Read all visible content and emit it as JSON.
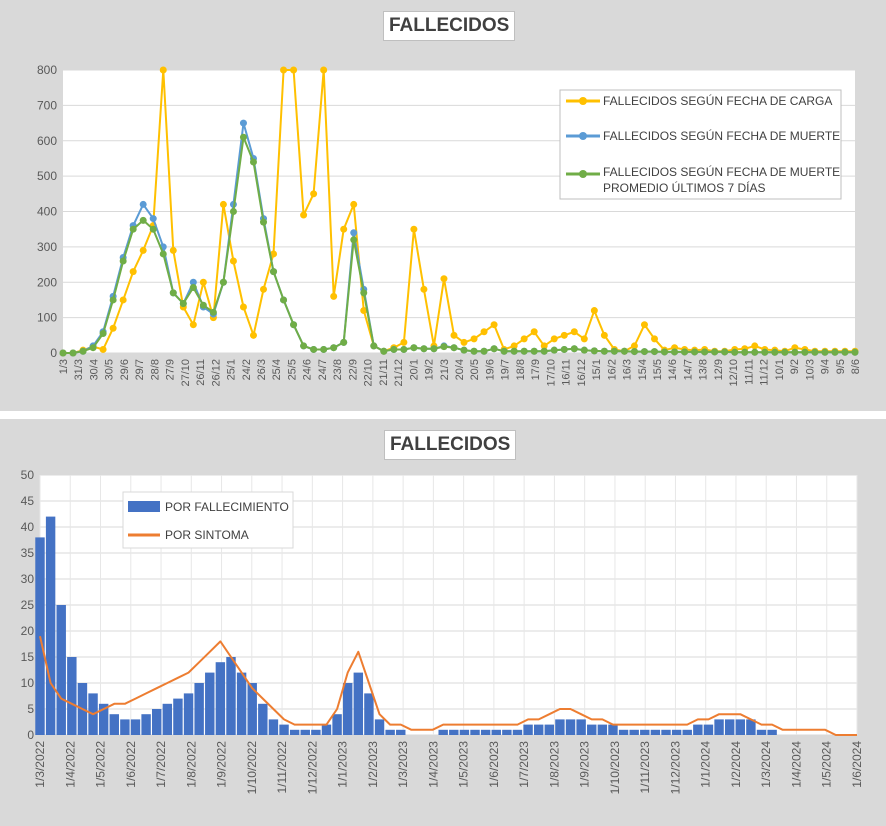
{
  "chart_data": [
    {
      "type": "line",
      "title": "FALLECIDOS",
      "ylim": [
        0,
        800
      ],
      "y_ticks": [
        "0",
        "100",
        "200",
        "300",
        "400",
        "500",
        "600",
        "700",
        "800"
      ],
      "x_tick_labels": [
        "1/3",
        "31/3",
        "30/4",
        "30/5",
        "29/6",
        "29/7",
        "28/8",
        "27/9",
        "27/10",
        "26/11",
        "26/12",
        "25/1",
        "24/2",
        "26/3",
        "25/4",
        "25/5",
        "24/6",
        "24/7",
        "23/8",
        "22/9",
        "22/10",
        "21/11",
        "21/12",
        "20/1",
        "19/2",
        "21/3",
        "20/4",
        "20/5",
        "19/6",
        "19/7",
        "18/8",
        "17/9",
        "17/10",
        "16/11",
        "16/12",
        "15/1",
        "16/2",
        "16/3",
        "15/4",
        "15/5",
        "14/6",
        "14/7",
        "13/8",
        "12/9",
        "12/10",
        "11/11",
        "11/12",
        "10/1",
        "9/2",
        "10/3",
        "9/4",
        "9/5",
        "8/6"
      ],
      "grid": true,
      "legend_position": "top-right",
      "series": [
        {
          "name": "FALLECIDOS SEGÚN FECHA DE CARGA",
          "color": "#ffc000",
          "values": [
            0,
            0,
            8,
            18,
            10,
            70,
            150,
            230,
            290,
            360,
            820,
            290,
            130,
            80,
            200,
            100,
            420,
            260,
            130,
            50,
            180,
            280,
            860,
            880,
            390,
            450,
            810,
            160,
            350,
            420,
            120,
            20,
            5,
            15,
            30,
            350,
            180,
            20,
            210,
            50,
            30,
            40,
            60,
            80,
            10,
            20,
            40,
            60,
            20,
            40,
            50,
            60,
            40,
            120,
            50,
            10,
            5,
            20,
            80,
            40,
            8,
            15,
            10,
            8,
            10,
            5,
            5,
            10,
            12,
            20,
            10,
            8,
            5,
            15,
            10,
            5,
            5,
            5,
            5,
            5
          ]
        },
        {
          "name": "FALLECIDOS SEGÚN FECHA DE MUERTE",
          "color": "#5b9bd5",
          "values": [
            0,
            0,
            5,
            20,
            60,
            160,
            270,
            360,
            420,
            380,
            300,
            170,
            140,
            200,
            130,
            110,
            200,
            420,
            650,
            550,
            380,
            230,
            150,
            80,
            20,
            10,
            10,
            15,
            30,
            340,
            180,
            20,
            5,
            10,
            10,
            15,
            12,
            12,
            20,
            15,
            8,
            5,
            5,
            12,
            5,
            5,
            5,
            5,
            5,
            8,
            10,
            12,
            8,
            6,
            5,
            5,
            5,
            4,
            4,
            4,
            3,
            3,
            3,
            3,
            3,
            3,
            3,
            2,
            2,
            2,
            2,
            2,
            2,
            2,
            2,
            2,
            2,
            2,
            2,
            2
          ]
        },
        {
          "name": "FALLECIDOS SEGÚN FECHA DE MUERTE PROMEDIO ÚLTIMOS 7 DÍAS",
          "color": "#70ad47",
          "values": [
            0,
            0,
            5,
            15,
            55,
            150,
            260,
            350,
            375,
            350,
            280,
            170,
            140,
            185,
            135,
            115,
            200,
            400,
            610,
            540,
            370,
            230,
            150,
            80,
            20,
            10,
            10,
            15,
            30,
            320,
            170,
            20,
            5,
            10,
            10,
            15,
            12,
            12,
            18,
            15,
            8,
            5,
            5,
            12,
            5,
            5,
            5,
            5,
            5,
            8,
            10,
            12,
            8,
            6,
            5,
            5,
            5,
            4,
            4,
            4,
            3,
            3,
            3,
            3,
            3,
            3,
            3,
            2,
            2,
            2,
            2,
            2,
            2,
            2,
            2,
            2,
            2,
            2,
            2,
            2
          ]
        }
      ]
    },
    {
      "type": "bar",
      "title": "FALLECIDOS",
      "ylim": [
        0,
        50
      ],
      "y_ticks": [
        "0",
        "5",
        "10",
        "15",
        "20",
        "25",
        "30",
        "35",
        "40",
        "45",
        "50"
      ],
      "x_tick_labels": [
        "1/3/2022",
        "1/4/2022",
        "1/5/2022",
        "1/6/2022",
        "1/7/2022",
        "1/8/2022",
        "1/9/2022",
        "1/10/2022",
        "1/11/2022",
        "1/12/2022",
        "1/1/2023",
        "1/2/2023",
        "1/3/2023",
        "1/4/2023",
        "1/5/2023",
        "1/6/2023",
        "1/7/2023",
        "1/8/2023",
        "1/9/2023",
        "1/10/2023",
        "1/11/2023",
        "1/12/2023",
        "1/1/2024",
        "1/2/2024",
        "1/3/2024",
        "1/4/2024",
        "1/5/2024",
        "1/6/2024"
      ],
      "grid": true,
      "legend_position": "top-left",
      "series": [
        {
          "name": "POR FALLECIMIENTO",
          "color": "#4472c4",
          "kind": "bar",
          "values": [
            38,
            42,
            25,
            15,
            10,
            8,
            6,
            4,
            3,
            3,
            4,
            5,
            6,
            7,
            8,
            10,
            12,
            14,
            15,
            12,
            10,
            6,
            3,
            2,
            1,
            1,
            1,
            2,
            4,
            10,
            12,
            8,
            3,
            1,
            1,
            0,
            0,
            0,
            1,
            1,
            1,
            1,
            1,
            1,
            1,
            1,
            2,
            2,
            2,
            3,
            3,
            3,
            2,
            2,
            2,
            1,
            1,
            1,
            1,
            1,
            1,
            1,
            2,
            2,
            3,
            3,
            3,
            3,
            1,
            1,
            0,
            0,
            0,
            0,
            0,
            0,
            0,
            0
          ]
        },
        {
          "name": "POR SINTOMA",
          "color": "#ed7d31",
          "kind": "line",
          "values": [
            19,
            10,
            7,
            6,
            5,
            4,
            5,
            6,
            6,
            7,
            8,
            9,
            10,
            11,
            12,
            14,
            16,
            18,
            15,
            12,
            9,
            7,
            5,
            3,
            2,
            2,
            2,
            2,
            5,
            12,
            16,
            10,
            4,
            2,
            2,
            1,
            1,
            1,
            2,
            2,
            2,
            2,
            2,
            2,
            2,
            2,
            3,
            3,
            4,
            5,
            5,
            4,
            3,
            3,
            2,
            2,
            2,
            2,
            2,
            2,
            2,
            2,
            3,
            3,
            4,
            4,
            4,
            3,
            2,
            2,
            1,
            1,
            1,
            1,
            1,
            0,
            0,
            0
          ]
        }
      ]
    }
  ]
}
